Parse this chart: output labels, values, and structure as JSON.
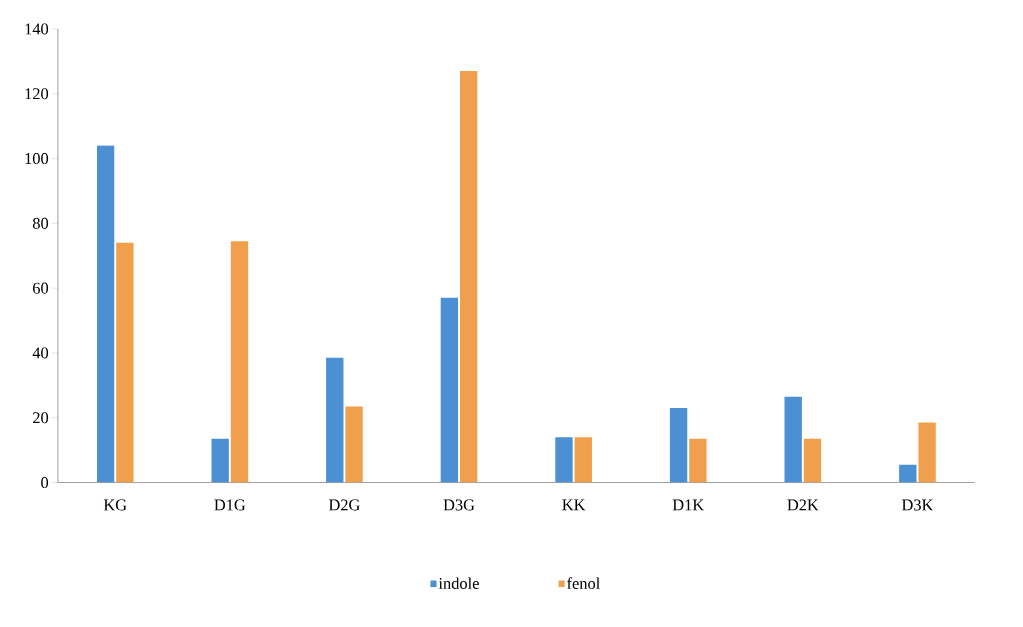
{
  "chart_data": {
    "type": "bar",
    "categories": [
      "KG",
      "D1G",
      "D2G",
      "D3G",
      "KK",
      "D1K",
      "D2K",
      "D3K"
    ],
    "series": [
      {
        "name": "indole",
        "color": "#4a90d2",
        "values": [
          104,
          13.5,
          38.5,
          57,
          14,
          23,
          26.5,
          5.5
        ]
      },
      {
        "name": "fenol",
        "color": "#f0a04c",
        "values": [
          74,
          74.5,
          23.5,
          127,
          14,
          13.5,
          13.5,
          18.5
        ]
      }
    ],
    "ylim": [
      0,
      140
    ],
    "yticks": [
      0,
      20,
      40,
      60,
      80,
      100,
      120,
      140
    ],
    "grid": false,
    "legend": "bottom"
  }
}
